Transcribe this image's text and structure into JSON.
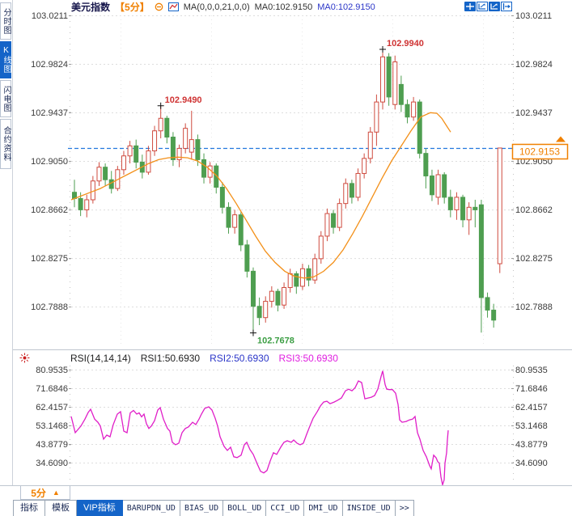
{
  "header": {
    "title": "美元指数",
    "period": "【5分】",
    "ma_settings": "MA(0,0,0,21,0,0)",
    "ma_values": [
      {
        "label": "MA0:102.9150",
        "color": "#303030"
      },
      {
        "label": "MA0:102.9150",
        "color": "#2a35c8"
      }
    ]
  },
  "toolbar_icons": [
    "crosshair-move",
    "axis-zoom",
    "axis-zoom-active",
    "shift-right"
  ],
  "sidebar": {
    "tabs": [
      {
        "label": "分时图",
        "active": false
      },
      {
        "label": "K线图",
        "active": true
      },
      {
        "label": "闪电图",
        "active": false
      },
      {
        "label": "合约资料",
        "active": false
      }
    ]
  },
  "rsi_header": {
    "settings": "RSI(14,14,14)",
    "values": [
      {
        "label": "RSI1:50.6930",
        "color": "#222222"
      },
      {
        "label": "RSI2:50.6930",
        "color": "#2a35c8"
      },
      {
        "label": "RSI3:50.6930",
        "color": "#e01ee0"
      }
    ]
  },
  "footer": {
    "period_label": "5分",
    "period_arrow": "▲",
    "tabs": [
      {
        "label": "指标",
        "active": false,
        "mono": false
      },
      {
        "label": "模板",
        "active": false,
        "mono": false
      },
      {
        "label": "VIP指标",
        "active": true,
        "mono": false
      },
      {
        "label": "BARUPDN_UD",
        "active": false,
        "mono": true
      },
      {
        "label": "BIAS_UD",
        "active": false,
        "mono": true
      },
      {
        "label": "BOLL_UD",
        "active": false,
        "mono": true
      },
      {
        "label": "CCI_UD",
        "active": false,
        "mono": true
      },
      {
        "label": "DMI_UD",
        "active": false,
        "mono": true
      },
      {
        "label": "INSIDE_UD",
        "active": false,
        "mono": true
      },
      {
        "label": ">>",
        "active": false,
        "mono": true
      }
    ]
  },
  "colors": {
    "up": "#cf4b3f",
    "down": "#4e9e50",
    "ma": "#f39019",
    "accent": "#f08000",
    "last_price_line": "#2277dd",
    "rsi_line": "#e01ec8",
    "grid": "#dddddd",
    "axis_text": "#3a3a3a",
    "annotation_high": "#cf3333",
    "annotation_low": "#3c9e44"
  },
  "chart_data": [
    {
      "type": "candlestick",
      "name": "美元指数 5分 K线 + MA21",
      "y_tick_labels": [
        "103.0211",
        "102.9824",
        "102.9437",
        "102.9050",
        "102.8662",
        "102.8275",
        "102.7888"
      ],
      "last_price": "102.9153",
      "annotations": [
        {
          "index": 14,
          "price": 102.949,
          "label": "102.9490",
          "place": "high"
        },
        {
          "index": 50,
          "price": 102.994,
          "label": "102.9940",
          "place": "high"
        },
        {
          "index": 29,
          "price": 102.7678,
          "label": "102.7678",
          "place": "low"
        }
      ],
      "candles": [
        [
          102.88,
          102.89,
          102.868,
          102.875
        ],
        [
          102.875,
          102.88,
          102.861,
          102.866
        ],
        [
          102.866,
          102.878,
          102.86,
          102.874
        ],
        [
          102.874,
          102.893,
          102.871,
          102.889
        ],
        [
          102.889,
          102.904,
          102.885,
          102.9
        ],
        [
          102.9,
          102.903,
          102.885,
          102.89
        ],
        [
          102.89,
          102.897,
          102.879,
          102.883
        ],
        [
          102.883,
          102.901,
          102.881,
          102.898
        ],
        [
          102.898,
          102.913,
          102.894,
          102.909
        ],
        [
          102.909,
          102.921,
          102.903,
          102.917
        ],
        [
          102.917,
          102.922,
          102.899,
          102.904
        ],
        [
          102.904,
          102.91,
          102.891,
          102.896
        ],
        [
          102.896,
          102.917,
          102.894,
          102.913
        ],
        [
          102.913,
          102.933,
          102.909,
          102.929
        ],
        [
          102.929,
          102.949,
          102.923,
          102.939
        ],
        [
          102.939,
          102.941,
          102.919,
          102.924
        ],
        [
          102.924,
          102.928,
          102.901,
          102.906
        ],
        [
          102.906,
          102.918,
          102.9,
          102.915
        ],
        [
          102.915,
          102.935,
          102.911,
          102.931
        ],
        [
          102.912,
          102.945,
          102.906,
          102.922
        ],
        [
          102.922,
          102.926,
          102.901,
          102.906
        ],
        [
          102.906,
          102.911,
          102.887,
          102.892
        ],
        [
          102.892,
          102.904,
          102.887,
          102.901
        ],
        [
          102.901,
          102.903,
          102.879,
          102.884
        ],
        [
          102.884,
          102.888,
          102.863,
          102.868
        ],
        [
          102.868,
          102.872,
          102.847,
          102.852
        ],
        [
          102.852,
          102.866,
          102.847,
          102.862
        ],
        [
          102.862,
          102.864,
          102.833,
          102.838
        ],
        [
          102.838,
          102.842,
          102.812,
          102.817
        ],
        [
          102.817,
          102.82,
          102.768,
          102.789
        ],
        [
          102.789,
          102.796,
          102.774,
          102.78
        ],
        [
          102.78,
          102.797,
          102.776,
          102.793
        ],
        [
          102.793,
          102.805,
          102.788,
          102.801
        ],
        [
          102.801,
          102.803,
          102.785,
          102.79
        ],
        [
          102.79,
          102.808,
          102.787,
          102.804
        ],
        [
          102.804,
          102.819,
          102.8,
          102.815
        ],
        [
          102.815,
          102.817,
          102.799,
          102.805
        ],
        [
          102.805,
          102.823,
          102.802,
          102.819
        ],
        [
          102.819,
          102.822,
          102.805,
          102.81
        ],
        [
          102.81,
          102.831,
          102.807,
          102.827
        ],
        [
          102.827,
          102.849,
          102.823,
          102.845
        ],
        [
          102.845,
          102.867,
          102.841,
          102.863
        ],
        [
          102.863,
          102.866,
          102.847,
          102.852
        ],
        [
          102.852,
          102.875,
          102.849,
          102.871
        ],
        [
          102.871,
          102.891,
          102.867,
          102.887
        ],
        [
          102.887,
          102.89,
          102.871,
          102.876
        ],
        [
          102.876,
          102.899,
          102.873,
          102.895
        ],
        [
          102.895,
          102.911,
          102.891,
          102.907
        ],
        [
          102.907,
          102.932,
          102.903,
          102.928
        ],
        [
          102.928,
          102.958,
          102.917,
          102.952
        ],
        [
          102.952,
          102.994,
          102.946,
          102.988
        ],
        [
          102.988,
          102.991,
          102.949,
          102.956
        ],
        [
          102.95,
          102.989,
          102.946,
          102.984
        ],
        [
          102.966,
          102.973,
          102.944,
          102.95
        ],
        [
          102.95,
          102.954,
          102.935,
          102.94
        ],
        [
          102.94,
          102.956,
          102.937,
          102.952
        ],
        [
          102.952,
          102.954,
          102.907,
          102.911
        ],
        [
          102.911,
          102.915,
          102.883,
          102.893
        ],
        [
          102.893,
          102.898,
          102.873,
          102.878
        ],
        [
          102.876,
          102.898,
          102.87,
          102.894
        ],
        [
          102.894,
          102.896,
          102.871,
          102.876
        ],
        [
          102.876,
          102.882,
          102.86,
          102.866
        ],
        [
          102.866,
          102.88,
          102.858,
          102.876
        ],
        [
          102.876,
          102.878,
          102.852,
          102.858
        ],
        [
          102.858,
          102.872,
          102.846,
          102.868
        ],
        [
          102.868,
          102.874,
          102.852,
          102.866
        ],
        [
          102.87,
          102.874,
          102.768,
          102.796
        ],
        [
          102.796,
          102.8,
          102.78,
          102.786
        ],
        [
          102.786,
          102.791,
          102.772,
          102.778
        ],
        [
          102.823,
          102.9153,
          102.8155,
          102.9153
        ]
      ],
      "ma_line": [
        [
          88,
          102.874
        ],
        [
          100,
          102.877
        ],
        [
          112,
          102.88
        ],
        [
          124,
          102.883
        ],
        [
          136,
          102.887
        ],
        [
          148,
          102.891
        ],
        [
          160,
          102.895
        ],
        [
          172,
          102.899
        ],
        [
          184,
          102.903
        ],
        [
          196,
          102.906
        ],
        [
          208,
          102.9075
        ],
        [
          220,
          102.908
        ],
        [
          232,
          102.9075
        ],
        [
          244,
          102.905
        ],
        [
          256,
          102.9
        ],
        [
          268,
          102.893
        ],
        [
          280,
          102.883
        ],
        [
          292,
          102.871
        ],
        [
          304,
          102.858
        ],
        [
          316,
          102.845
        ],
        [
          328,
          102.833
        ],
        [
          340,
          102.824
        ],
        [
          352,
          102.817
        ],
        [
          364,
          102.813
        ],
        [
          376,
          102.8115
        ],
        [
          388,
          102.8125
        ],
        [
          400,
          102.817
        ],
        [
          412,
          102.824
        ],
        [
          424,
          102.834
        ],
        [
          436,
          102.847
        ],
        [
          448,
          102.861
        ],
        [
          460,
          102.876
        ],
        [
          472,
          102.891
        ],
        [
          484,
          102.905
        ],
        [
          496,
          102.917
        ],
        [
          508,
          102.929
        ],
        [
          520,
          102.94
        ],
        [
          532,
          102.9435
        ],
        [
          540,
          102.943
        ],
        [
          546,
          102.939
        ],
        [
          552,
          102.933
        ],
        [
          557,
          102.928
        ]
      ]
    },
    {
      "type": "line",
      "name": "RSI",
      "y_tick_labels": [
        "80.9535",
        "71.6846",
        "62.4157",
        "53.1468",
        "43.8779",
        "34.6090"
      ],
      "points": [
        [
          88,
          57.6
        ],
        [
          93,
          49.5
        ],
        [
          100,
          52.8
        ],
        [
          105,
          56.3
        ],
        [
          109,
          59.6
        ],
        [
          112,
          61.2
        ],
        [
          117,
          56.3
        ],
        [
          121,
          54.7
        ],
        [
          124,
          52.8
        ],
        [
          128,
          46.3
        ],
        [
          132,
          48.3
        ],
        [
          136,
          47.5
        ],
        [
          140,
          53.6
        ],
        [
          145,
          58.8
        ],
        [
          149,
          60.0
        ],
        [
          153,
          50.3
        ],
        [
          157,
          49.5
        ],
        [
          161,
          59.4
        ],
        [
          165,
          60.6
        ],
        [
          169,
          58.8
        ],
        [
          172,
          59.4
        ],
        [
          175,
          57.4
        ],
        [
          178,
          58.8
        ],
        [
          181,
          54.0
        ],
        [
          184,
          51.6
        ],
        [
          187,
          52.8
        ],
        [
          191,
          55.5
        ],
        [
          195,
          60.8
        ],
        [
          198,
          62.0
        ],
        [
          202,
          56.3
        ],
        [
          207,
          51.6
        ],
        [
          210,
          50.3
        ],
        [
          213,
          44.7
        ],
        [
          217,
          43.5
        ],
        [
          221,
          44.3
        ],
        [
          225,
          49.5
        ],
        [
          229,
          51.6
        ],
        [
          233,
          52.4
        ],
        [
          238,
          54.7
        ],
        [
          242,
          53.6
        ],
        [
          246,
          56.3
        ],
        [
          249,
          58.8
        ],
        [
          253,
          61.6
        ],
        [
          258,
          62.4
        ],
        [
          262,
          60.8
        ],
        [
          266,
          56.7
        ],
        [
          269,
          52.8
        ],
        [
          272,
          47.5
        ],
        [
          277,
          42.7
        ],
        [
          281,
          40.7
        ],
        [
          285,
          42.3
        ],
        [
          289,
          37.5
        ],
        [
          293,
          37.1
        ],
        [
          298,
          38.3
        ],
        [
          302,
          43.5
        ],
        [
          305,
          44.7
        ],
        [
          309,
          41.1
        ],
        [
          313,
          38.7
        ],
        [
          318,
          33.9
        ],
        [
          322,
          30.3
        ],
        [
          326,
          29.5
        ],
        [
          330,
          30.7
        ],
        [
          334,
          35.5
        ],
        [
          338,
          39.5
        ],
        [
          342,
          38.7
        ],
        [
          347,
          42.3
        ],
        [
          351,
          44.7
        ],
        [
          355,
          45.5
        ],
        [
          360,
          44.7
        ],
        [
          363,
          45.9
        ],
        [
          367,
          44.3
        ],
        [
          371,
          43.5
        ],
        [
          375,
          44.3
        ],
        [
          379,
          48.7
        ],
        [
          383,
          52.8
        ],
        [
          387,
          56.7
        ],
        [
          392,
          59.9
        ],
        [
          396,
          62.8
        ],
        [
          400,
          64.8
        ],
        [
          404,
          65.2
        ],
        [
          408,
          64.0
        ],
        [
          413,
          64.8
        ],
        [
          417,
          65.6
        ],
        [
          422,
          66.8
        ],
        [
          427,
          70.4
        ],
        [
          431,
          71.2
        ],
        [
          435,
          70.4
        ],
        [
          439,
          72.0
        ],
        [
          443,
          75.3
        ],
        [
          447,
          74.5
        ],
        [
          451,
          66.4
        ],
        [
          455,
          66.8
        ],
        [
          459,
          67.2
        ],
        [
          463,
          68.0
        ],
        [
          467,
          71.2
        ],
        [
          471,
          77.5
        ],
        [
          473,
          80.3
        ],
        [
          476,
          73.5
        ],
        [
          478,
          71.2
        ],
        [
          481,
          71.0
        ],
        [
          485,
          71.0
        ],
        [
          489,
          69.2
        ],
        [
          492,
          63.6
        ],
        [
          494,
          55.9
        ],
        [
          497,
          54.7
        ],
        [
          502,
          55.1
        ],
        [
          506,
          55.9
        ],
        [
          510,
          56.3
        ],
        [
          513,
          57.6
        ],
        [
          516,
          49.5
        ],
        [
          519,
          46.3
        ],
        [
          523,
          40.7
        ],
        [
          527,
          37.5
        ],
        [
          531,
          33.1
        ],
        [
          533,
          31.5
        ],
        [
          536,
          38.3
        ],
        [
          539,
          37.0
        ],
        [
          541,
          35.1
        ],
        [
          543,
          34.3
        ],
        [
          545,
          27.5
        ],
        [
          547,
          23.5
        ],
        [
          549,
          26.0
        ],
        [
          550,
          34.3
        ],
        [
          552,
          39.5
        ],
        [
          553,
          46.0
        ],
        [
          554,
          50.7
        ]
      ]
    }
  ]
}
